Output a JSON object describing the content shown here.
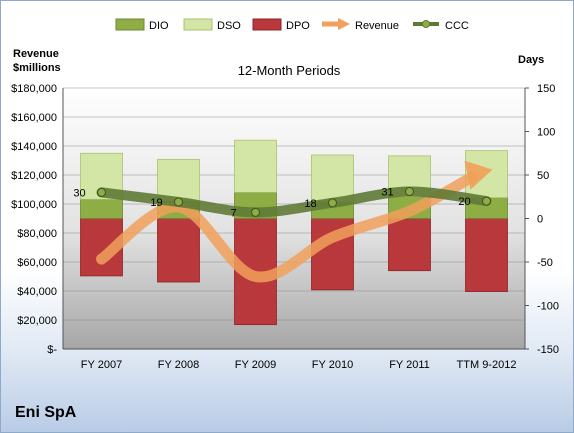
{
  "company": "Eni SpA",
  "chart_data": {
    "type": "bar",
    "title": "12-Month Periods",
    "y_left_label": "Revenue $millions",
    "y_right_label": "Days",
    "left_axis": {
      "min": 0,
      "max": 180000,
      "ticks": [
        "$-",
        "$20,000",
        "$40,000",
        "$60,000",
        "$80,000",
        "$100,000",
        "$120,000",
        "$140,000",
        "$160,000",
        "$180,000"
      ]
    },
    "right_axis": {
      "min": -150,
      "max": 150,
      "ticks": [
        "-150",
        "-100",
        "-50",
        "0",
        "50",
        "100",
        "150"
      ]
    },
    "categories": [
      "FY 2007",
      "FY 2008",
      "FY 2009",
      "FY 2010",
      "FY 2011",
      "TTM 9-2012"
    ],
    "series": [
      {
        "name": "DIO",
        "color": "#8fad45",
        "values": [
          22,
          20,
          30,
          19,
          25,
          24
        ]
      },
      {
        "name": "DSO",
        "color": "#d4e6a6",
        "values": [
          53,
          48,
          60,
          54,
          47,
          54
        ]
      },
      {
        "name": "DPO",
        "color": "#b8383b",
        "values": [
          -66,
          -73,
          -122,
          -82,
          -60,
          -84
        ]
      },
      {
        "name": "Revenue",
        "color": "#f0a05a",
        "values": [
          62000,
          98000,
          50000,
          77000,
          95000,
          123000
        ]
      },
      {
        "name": "CCC",
        "color": "#5f7a35",
        "values": [
          30,
          19,
          7,
          18,
          31,
          20
        ]
      }
    ],
    "ccc_labels": [
      "30",
      "19",
      "7",
      "18",
      "31",
      "20"
    ],
    "legend_position": "top"
  }
}
